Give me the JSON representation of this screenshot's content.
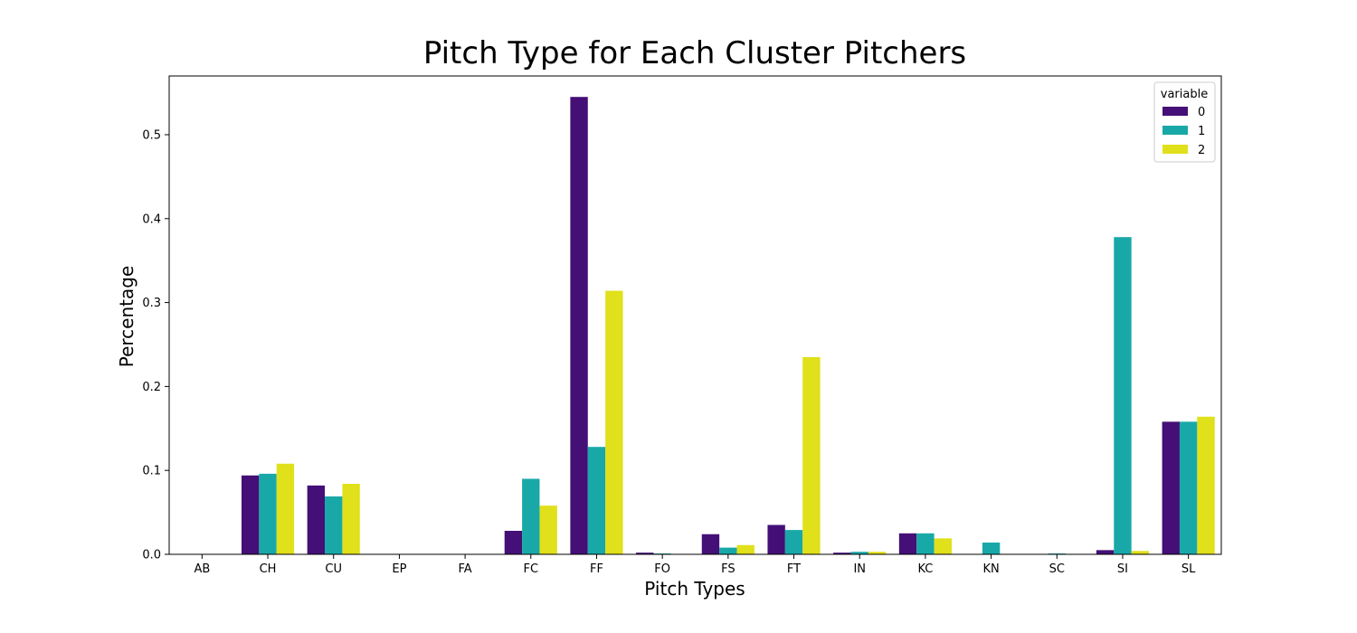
{
  "chart_data": {
    "type": "bar",
    "title": "Pitch Type for Each Cluster Pitchers",
    "xlabel": "Pitch Types",
    "ylabel": "Percentage",
    "ylim": [
      0,
      0.57
    ],
    "yticks": [
      "0.0",
      "0.1",
      "0.2",
      "0.3",
      "0.4",
      "0.5"
    ],
    "grid": false,
    "legend": {
      "title": "variable",
      "position": "top-right"
    },
    "categories": [
      "AB",
      "CH",
      "CU",
      "EP",
      "FA",
      "FC",
      "FF",
      "FO",
      "FS",
      "FT",
      "IN",
      "KC",
      "KN",
      "SC",
      "SI",
      "SL"
    ],
    "series": [
      {
        "name": "0",
        "color": "#440f76",
        "values": [
          0.0005,
          0.094,
          0.082,
          0.0005,
          0.0005,
          0.028,
          0.545,
          0.002,
          0.024,
          0.035,
          0.002,
          0.025,
          0,
          0,
          0.005,
          0.158
        ]
      },
      {
        "name": "1",
        "color": "#19a8a8",
        "values": [
          0.0005,
          0.096,
          0.069,
          0.0005,
          0,
          0.09,
          0.128,
          0.001,
          0.008,
          0.029,
          0.003,
          0.025,
          0.014,
          0.001,
          0.378,
          0.158
        ]
      },
      {
        "name": "2",
        "color": "#e0e01b",
        "values": [
          0.0005,
          0.108,
          0.084,
          0.0005,
          0.0005,
          0.058,
          0.314,
          0.0005,
          0.011,
          0.235,
          0.003,
          0.019,
          0,
          0,
          0.004,
          0.164
        ]
      }
    ]
  }
}
